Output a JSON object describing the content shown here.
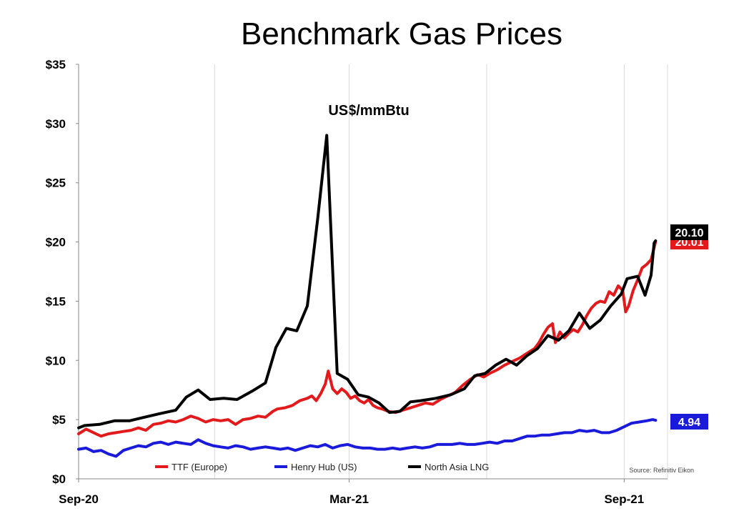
{
  "chart_data": {
    "type": "line",
    "title": "Benchmark Gas Prices",
    "subtitle": "US$/mmBtu",
    "source": "Source: Refinitiv Eikon",
    "ylim": [
      0,
      35
    ],
    "yticks": [
      0,
      5,
      10,
      15,
      20,
      25,
      30,
      35
    ],
    "ytick_labels": [
      "$0",
      "$5",
      "$10",
      "$15",
      "$20",
      "$25",
      "$30",
      "$35"
    ],
    "xlim": [
      "2020-09-01",
      "2021-09-30"
    ],
    "xtick_labels": [
      {
        "date": "2020-09-01",
        "label": "Sep-20"
      },
      {
        "date": "2021-03-01",
        "label": "Mar-21"
      },
      {
        "date": "2021-09-01",
        "label": "Sep-21"
      }
    ],
    "xgrid_dates": [
      "2020-09-01",
      "2020-12-01",
      "2021-03-01",
      "2021-06-01",
      "2021-09-01"
    ],
    "grid": {
      "horizontal": false,
      "vertical": true
    },
    "legend_position": "bottom",
    "series": [
      {
        "name": "TTF (Europe)",
        "color": "#e31a1c",
        "end_label": "20.01",
        "points": [
          [
            "2020-09-01",
            3.8
          ],
          [
            "2020-09-06",
            4.2
          ],
          [
            "2020-09-11",
            3.9
          ],
          [
            "2020-09-16",
            3.6
          ],
          [
            "2020-09-21",
            3.8
          ],
          [
            "2020-09-26",
            3.9
          ],
          [
            "2020-10-01",
            4.0
          ],
          [
            "2020-10-06",
            4.1
          ],
          [
            "2020-10-11",
            4.3
          ],
          [
            "2020-10-16",
            4.1
          ],
          [
            "2020-10-21",
            4.6
          ],
          [
            "2020-10-26",
            4.7
          ],
          [
            "2020-10-31",
            4.9
          ],
          [
            "2020-11-05",
            4.8
          ],
          [
            "2020-11-10",
            5.0
          ],
          [
            "2020-11-15",
            5.3
          ],
          [
            "2020-11-20",
            5.1
          ],
          [
            "2020-11-25",
            4.8
          ],
          [
            "2020-11-30",
            5.0
          ],
          [
            "2020-12-05",
            4.9
          ],
          [
            "2020-12-10",
            5.0
          ],
          [
            "2020-12-15",
            4.6
          ],
          [
            "2020-12-20",
            5.0
          ],
          [
            "2020-12-25",
            5.1
          ],
          [
            "2020-12-30",
            5.3
          ],
          [
            "2021-01-04",
            5.2
          ],
          [
            "2021-01-09",
            5.7
          ],
          [
            "2021-01-12",
            5.9
          ],
          [
            "2021-01-17",
            6.0
          ],
          [
            "2021-01-22",
            6.2
          ],
          [
            "2021-01-27",
            6.6
          ],
          [
            "2021-02-01",
            6.8
          ],
          [
            "2021-02-04",
            7.0
          ],
          [
            "2021-02-07",
            6.6
          ],
          [
            "2021-02-10",
            7.2
          ],
          [
            "2021-02-13",
            8.0
          ],
          [
            "2021-02-15",
            9.1
          ],
          [
            "2021-02-18",
            7.6
          ],
          [
            "2021-02-21",
            7.2
          ],
          [
            "2021-02-24",
            7.6
          ],
          [
            "2021-02-27",
            7.3
          ],
          [
            "2021-03-02",
            6.8
          ],
          [
            "2021-03-05",
            7.0
          ],
          [
            "2021-03-08",
            6.6
          ],
          [
            "2021-03-11",
            6.4
          ],
          [
            "2021-03-14",
            6.7
          ],
          [
            "2021-03-17",
            6.2
          ],
          [
            "2021-03-20",
            6.0
          ],
          [
            "2021-03-23",
            5.9
          ],
          [
            "2021-03-27",
            5.7
          ],
          [
            "2021-04-01",
            5.6
          ],
          [
            "2021-04-06",
            5.8
          ],
          [
            "2021-04-11",
            6.0
          ],
          [
            "2021-04-16",
            6.2
          ],
          [
            "2021-04-21",
            6.4
          ],
          [
            "2021-04-26",
            6.3
          ],
          [
            "2021-05-01",
            6.7
          ],
          [
            "2021-05-06",
            7.0
          ],
          [
            "2021-05-11",
            7.3
          ],
          [
            "2021-05-16",
            7.9
          ],
          [
            "2021-05-21",
            8.4
          ],
          [
            "2021-05-26",
            8.8
          ],
          [
            "2021-05-30",
            8.6
          ],
          [
            "2021-06-03",
            8.9
          ],
          [
            "2021-06-08",
            9.2
          ],
          [
            "2021-06-13",
            9.6
          ],
          [
            "2021-06-18",
            9.9
          ],
          [
            "2021-06-23",
            10.2
          ],
          [
            "2021-06-28",
            10.6
          ],
          [
            "2021-07-03",
            11.0
          ],
          [
            "2021-07-06",
            11.5
          ],
          [
            "2021-07-09",
            12.2
          ],
          [
            "2021-07-12",
            12.8
          ],
          [
            "2021-07-15",
            13.1
          ],
          [
            "2021-07-17",
            11.5
          ],
          [
            "2021-07-20",
            12.4
          ],
          [
            "2021-07-23",
            11.9
          ],
          [
            "2021-07-26",
            12.3
          ],
          [
            "2021-07-29",
            12.6
          ],
          [
            "2021-08-01",
            12.4
          ],
          [
            "2021-08-04",
            13.0
          ],
          [
            "2021-08-07",
            13.8
          ],
          [
            "2021-08-10",
            14.4
          ],
          [
            "2021-08-13",
            14.8
          ],
          [
            "2021-08-16",
            15.0
          ],
          [
            "2021-08-19",
            14.9
          ],
          [
            "2021-08-22",
            15.8
          ],
          [
            "2021-08-25",
            15.5
          ],
          [
            "2021-08-28",
            16.3
          ],
          [
            "2021-08-31",
            15.9
          ],
          [
            "2021-09-02",
            14.1
          ],
          [
            "2021-09-04",
            14.6
          ],
          [
            "2021-09-07",
            15.9
          ],
          [
            "2021-09-10",
            16.8
          ],
          [
            "2021-09-13",
            17.8
          ],
          [
            "2021-09-16",
            18.1
          ],
          [
            "2021-09-19",
            18.5
          ],
          [
            "2021-09-22",
            20.01
          ]
        ]
      },
      {
        "name": "Henry Hub (US)",
        "color": "#1a1adb",
        "end_label": "4.94",
        "points": [
          [
            "2020-09-01",
            2.5
          ],
          [
            "2020-09-06",
            2.6
          ],
          [
            "2020-09-11",
            2.3
          ],
          [
            "2020-09-16",
            2.4
          ],
          [
            "2020-09-21",
            2.1
          ],
          [
            "2020-09-26",
            1.9
          ],
          [
            "2020-10-01",
            2.4
          ],
          [
            "2020-10-06",
            2.6
          ],
          [
            "2020-10-11",
            2.8
          ],
          [
            "2020-10-16",
            2.7
          ],
          [
            "2020-10-21",
            3.0
          ],
          [
            "2020-10-26",
            3.1
          ],
          [
            "2020-10-31",
            2.9
          ],
          [
            "2020-11-05",
            3.1
          ],
          [
            "2020-11-10",
            3.0
          ],
          [
            "2020-11-15",
            2.9
          ],
          [
            "2020-11-20",
            3.3
          ],
          [
            "2020-11-25",
            3.0
          ],
          [
            "2020-11-30",
            2.8
          ],
          [
            "2020-12-05",
            2.7
          ],
          [
            "2020-12-10",
            2.6
          ],
          [
            "2020-12-15",
            2.8
          ],
          [
            "2020-12-20",
            2.7
          ],
          [
            "2020-12-25",
            2.5
          ],
          [
            "2020-12-30",
            2.6
          ],
          [
            "2021-01-04",
            2.7
          ],
          [
            "2021-01-09",
            2.6
          ],
          [
            "2021-01-14",
            2.5
          ],
          [
            "2021-01-19",
            2.6
          ],
          [
            "2021-01-24",
            2.4
          ],
          [
            "2021-01-29",
            2.6
          ],
          [
            "2021-02-03",
            2.8
          ],
          [
            "2021-02-08",
            2.7
          ],
          [
            "2021-02-13",
            2.9
          ],
          [
            "2021-02-18",
            2.6
          ],
          [
            "2021-02-23",
            2.8
          ],
          [
            "2021-02-28",
            2.9
          ],
          [
            "2021-03-05",
            2.7
          ],
          [
            "2021-03-10",
            2.6
          ],
          [
            "2021-03-15",
            2.6
          ],
          [
            "2021-03-20",
            2.5
          ],
          [
            "2021-03-25",
            2.5
          ],
          [
            "2021-03-30",
            2.6
          ],
          [
            "2021-04-04",
            2.5
          ],
          [
            "2021-04-09",
            2.6
          ],
          [
            "2021-04-14",
            2.7
          ],
          [
            "2021-04-19",
            2.6
          ],
          [
            "2021-04-24",
            2.7
          ],
          [
            "2021-04-29",
            2.9
          ],
          [
            "2021-05-04",
            2.9
          ],
          [
            "2021-05-09",
            2.9
          ],
          [
            "2021-05-14",
            3.0
          ],
          [
            "2021-05-19",
            2.9
          ],
          [
            "2021-05-24",
            2.9
          ],
          [
            "2021-05-29",
            3.0
          ],
          [
            "2021-06-03",
            3.1
          ],
          [
            "2021-06-08",
            3.0
          ],
          [
            "2021-06-13",
            3.2
          ],
          [
            "2021-06-18",
            3.2
          ],
          [
            "2021-06-23",
            3.4
          ],
          [
            "2021-06-28",
            3.6
          ],
          [
            "2021-07-03",
            3.6
          ],
          [
            "2021-07-08",
            3.7
          ],
          [
            "2021-07-13",
            3.7
          ],
          [
            "2021-07-18",
            3.8
          ],
          [
            "2021-07-23",
            3.9
          ],
          [
            "2021-07-28",
            3.9
          ],
          [
            "2021-08-02",
            4.1
          ],
          [
            "2021-08-07",
            4.0
          ],
          [
            "2021-08-12",
            4.1
          ],
          [
            "2021-08-17",
            3.9
          ],
          [
            "2021-08-22",
            3.9
          ],
          [
            "2021-08-27",
            4.1
          ],
          [
            "2021-09-01",
            4.4
          ],
          [
            "2021-09-06",
            4.7
          ],
          [
            "2021-09-11",
            4.8
          ],
          [
            "2021-09-16",
            4.9
          ],
          [
            "2021-09-20",
            5.0
          ],
          [
            "2021-09-22",
            4.94
          ]
        ]
      },
      {
        "name": "North Asia LNG",
        "color": "#000000",
        "end_label": "20.10",
        "points": [
          [
            "2020-09-01",
            4.3
          ],
          [
            "2020-09-05",
            4.5
          ],
          [
            "2020-09-15",
            4.6
          ],
          [
            "2020-09-25",
            4.9
          ],
          [
            "2020-10-05",
            4.9
          ],
          [
            "2020-10-15",
            5.2
          ],
          [
            "2020-10-25",
            5.5
          ],
          [
            "2020-11-05",
            5.8
          ],
          [
            "2020-11-12",
            6.9
          ],
          [
            "2020-11-20",
            7.5
          ],
          [
            "2020-11-28",
            6.7
          ],
          [
            "2020-12-07",
            6.8
          ],
          [
            "2020-12-16",
            6.7
          ],
          [
            "2020-12-26",
            7.4
          ],
          [
            "2021-01-04",
            8.1
          ],
          [
            "2021-01-11",
            11.1
          ],
          [
            "2021-01-18",
            12.7
          ],
          [
            "2021-01-25",
            12.5
          ],
          [
            "2021-02-01",
            14.6
          ],
          [
            "2021-02-08",
            22.0
          ],
          [
            "2021-02-14",
            29.0
          ],
          [
            "2021-02-21",
            8.9
          ],
          [
            "2021-02-28",
            8.4
          ],
          [
            "2021-03-07",
            7.1
          ],
          [
            "2021-03-14",
            6.9
          ],
          [
            "2021-03-21",
            6.4
          ],
          [
            "2021-03-28",
            5.6
          ],
          [
            "2021-04-04",
            5.7
          ],
          [
            "2021-04-11",
            6.5
          ],
          [
            "2021-04-18",
            6.6
          ],
          [
            "2021-04-28",
            6.8
          ],
          [
            "2021-05-08",
            7.1
          ],
          [
            "2021-05-17",
            7.6
          ],
          [
            "2021-05-24",
            8.7
          ],
          [
            "2021-05-31",
            8.9
          ],
          [
            "2021-06-07",
            9.6
          ],
          [
            "2021-06-14",
            10.1
          ],
          [
            "2021-06-21",
            9.6
          ],
          [
            "2021-06-28",
            10.4
          ],
          [
            "2021-07-05",
            11.0
          ],
          [
            "2021-07-12",
            12.1
          ],
          [
            "2021-07-19",
            11.7
          ],
          [
            "2021-07-26",
            12.5
          ],
          [
            "2021-08-02",
            14.0
          ],
          [
            "2021-08-09",
            12.7
          ],
          [
            "2021-08-16",
            13.4
          ],
          [
            "2021-08-23",
            14.6
          ],
          [
            "2021-08-30",
            15.6
          ],
          [
            "2021-09-03",
            16.9
          ],
          [
            "2021-09-10",
            17.1
          ],
          [
            "2021-09-15",
            15.5
          ],
          [
            "2021-09-19",
            17.2
          ],
          [
            "2021-09-21",
            19.9
          ],
          [
            "2021-09-22",
            20.1
          ]
        ]
      }
    ]
  }
}
